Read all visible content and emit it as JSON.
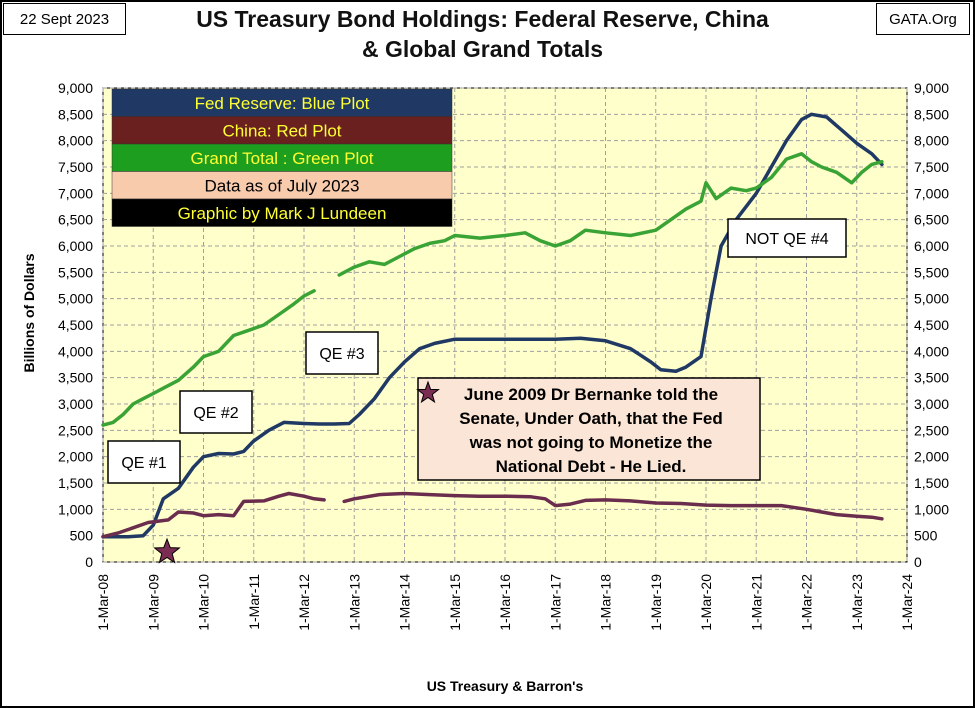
{
  "header": {
    "date": "22 Sept 2023",
    "source_label": "GATA.Org",
    "title_line1": "US Treasury Bond Holdings: Federal Reserve, China",
    "title_line2": "& Global Grand Totals"
  },
  "legend": [
    {
      "text": "Fed Reserve: Blue Plot",
      "bg": "#1f3864",
      "fg": "#ffff33"
    },
    {
      "text": "China: Red Plot",
      "bg": "#6b2020",
      "fg": "#ffff33"
    },
    {
      "text": "Grand Total : Green Plot",
      "bg": "#1e9e1e",
      "fg": "#ffff33"
    },
    {
      "text": "Data as of July 2023",
      "bg": "#f8cbad",
      "fg": "#000000"
    },
    {
      "text": "Graphic by Mark J Lundeen",
      "bg": "#000000",
      "fg": "#ffff33"
    }
  ],
  "colors": {
    "plot_background": "#ffffcc",
    "fed": "#1f3864",
    "china": "#6b2d4e",
    "total": "#3aa335",
    "note_background": "#fbe5d6"
  },
  "annotations": {
    "qe1": "QE #1",
    "qe2": "QE #2",
    "qe3": "QE #3",
    "notqe4": "NOT QE #4",
    "note_lines": [
      "June 2009 Dr Bernanke told the",
      "Senate, Under Oath, that the Fed",
      "was not going to Monetize the",
      "National Debt - He Lied."
    ]
  },
  "chart_data": {
    "type": "line",
    "title": "US Treasury Bond Holdings: Federal Reserve, China & Global Grand Totals",
    "xlabel": "US Treasury  & Barron's",
    "ylabel": "Billions of Dollars",
    "ylim": [
      0,
      9000
    ],
    "y_ticks": [
      "0",
      "500",
      "1,000",
      "1,500",
      "2,000",
      "2,500",
      "3,000",
      "3,500",
      "4,000",
      "4,500",
      "5,000",
      "5,500",
      "6,000",
      "6,500",
      "7,000",
      "7,500",
      "8,000",
      "8,500",
      "9,000"
    ],
    "x_ticks": [
      "1-Mar-08",
      "1-Mar-09",
      "1-Mar-10",
      "1-Mar-11",
      "1-Mar-12",
      "1-Mar-13",
      "1-Mar-14",
      "1-Mar-15",
      "1-Mar-16",
      "1-Mar-17",
      "1-Mar-18",
      "1-Mar-19",
      "1-Mar-20",
      "1-Mar-21",
      "1-Mar-22",
      "1-Mar-23",
      "1-Mar-24"
    ],
    "xlim": [
      2008.0,
      2024.0
    ],
    "grid": true,
    "legend_position": "top-left",
    "series": [
      {
        "key": "fed",
        "points": [
          [
            2008.0,
            480
          ],
          [
            2008.5,
            480
          ],
          [
            2008.8,
            500
          ],
          [
            2009.0,
            700
          ],
          [
            2009.2,
            1200
          ],
          [
            2009.5,
            1400
          ],
          [
            2009.8,
            1800
          ],
          [
            2010.0,
            2000
          ],
          [
            2010.3,
            2060
          ],
          [
            2010.6,
            2050
          ],
          [
            2010.8,
            2100
          ],
          [
            2011.0,
            2300
          ],
          [
            2011.3,
            2500
          ],
          [
            2011.6,
            2650
          ],
          [
            2012.0,
            2630
          ],
          [
            2012.3,
            2620
          ],
          [
            2012.6,
            2620
          ],
          [
            2012.9,
            2630
          ],
          [
            2013.1,
            2800
          ],
          [
            2013.4,
            3100
          ],
          [
            2013.7,
            3500
          ],
          [
            2014.0,
            3800
          ],
          [
            2014.3,
            4050
          ],
          [
            2014.6,
            4150
          ],
          [
            2015.0,
            4230
          ],
          [
            2015.5,
            4230
          ],
          [
            2016.0,
            4230
          ],
          [
            2016.5,
            4230
          ],
          [
            2017.0,
            4230
          ],
          [
            2017.5,
            4250
          ],
          [
            2018.0,
            4200
          ],
          [
            2018.5,
            4050
          ],
          [
            2018.9,
            3800
          ],
          [
            2019.1,
            3650
          ],
          [
            2019.4,
            3620
          ],
          [
            2019.6,
            3700
          ],
          [
            2019.9,
            3900
          ],
          [
            2020.1,
            5000
          ],
          [
            2020.3,
            6000
          ],
          [
            2020.6,
            6500
          ],
          [
            2021.0,
            7000
          ],
          [
            2021.3,
            7500
          ],
          [
            2021.6,
            8000
          ],
          [
            2021.9,
            8400
          ],
          [
            2022.1,
            8500
          ],
          [
            2022.4,
            8450
          ],
          [
            2022.7,
            8200
          ],
          [
            2023.0,
            7950
          ],
          [
            2023.3,
            7750
          ],
          [
            2023.5,
            7550
          ]
        ]
      },
      {
        "key": "china",
        "points": [
          [
            2008.0,
            480
          ],
          [
            2008.3,
            550
          ],
          [
            2008.6,
            650
          ],
          [
            2008.9,
            750
          ],
          [
            2009.3,
            800
          ],
          [
            2009.5,
            950
          ],
          [
            2009.8,
            930
          ],
          [
            2010.0,
            880
          ],
          [
            2010.3,
            900
          ],
          [
            2010.6,
            880
          ],
          [
            2010.8,
            1150
          ],
          [
            2011.2,
            1160
          ],
          [
            2011.5,
            1250
          ],
          [
            2011.7,
            1300
          ],
          [
            2012.0,
            1250
          ],
          [
            2012.2,
            1200
          ],
          [
            2012.4,
            1180
          ],
          [
            2012.7,
            null
          ],
          [
            2012.8,
            1150
          ],
          [
            2013.0,
            1200
          ],
          [
            2013.5,
            1280
          ],
          [
            2014.0,
            1300
          ],
          [
            2014.5,
            1280
          ],
          [
            2015.0,
            1260
          ],
          [
            2015.5,
            1250
          ],
          [
            2016.0,
            1250
          ],
          [
            2016.5,
            1240
          ],
          [
            2016.8,
            1200
          ],
          [
            2017.0,
            1070
          ],
          [
            2017.3,
            1100
          ],
          [
            2017.6,
            1170
          ],
          [
            2018.0,
            1180
          ],
          [
            2018.5,
            1160
          ],
          [
            2019.0,
            1120
          ],
          [
            2019.5,
            1110
          ],
          [
            2020.0,
            1080
          ],
          [
            2020.5,
            1070
          ],
          [
            2021.0,
            1070
          ],
          [
            2021.5,
            1070
          ],
          [
            2022.0,
            1000
          ],
          [
            2022.3,
            950
          ],
          [
            2022.6,
            900
          ],
          [
            2023.0,
            870
          ],
          [
            2023.3,
            850
          ],
          [
            2023.5,
            820
          ]
        ]
      },
      {
        "key": "total",
        "points": [
          [
            2008.0,
            2600
          ],
          [
            2008.2,
            2650
          ],
          [
            2008.4,
            2800
          ],
          [
            2008.6,
            3000
          ],
          [
            2008.8,
            3100
          ],
          [
            2009.0,
            3200
          ],
          [
            2009.2,
            3300
          ],
          [
            2009.5,
            3450
          ],
          [
            2009.8,
            3700
          ],
          [
            2010.0,
            3900
          ],
          [
            2010.3,
            4000
          ],
          [
            2010.6,
            4300
          ],
          [
            2010.9,
            4400
          ],
          [
            2011.2,
            4500
          ],
          [
            2011.5,
            4700
          ],
          [
            2011.8,
            4900
          ],
          [
            2012.0,
            5050
          ],
          [
            2012.2,
            5150
          ],
          [
            2012.4,
            null
          ],
          [
            2012.7,
            5450
          ],
          [
            2013.0,
            5600
          ],
          [
            2013.3,
            5700
          ],
          [
            2013.6,
            5650
          ],
          [
            2013.9,
            5800
          ],
          [
            2014.2,
            5950
          ],
          [
            2014.5,
            6050
          ],
          [
            2014.8,
            6100
          ],
          [
            2015.0,
            6200
          ],
          [
            2015.5,
            6150
          ],
          [
            2016.0,
            6200
          ],
          [
            2016.4,
            6250
          ],
          [
            2016.7,
            6100
          ],
          [
            2017.0,
            6000
          ],
          [
            2017.3,
            6100
          ],
          [
            2017.6,
            6300
          ],
          [
            2018.0,
            6250
          ],
          [
            2018.5,
            6200
          ],
          [
            2019.0,
            6300
          ],
          [
            2019.3,
            6500
          ],
          [
            2019.6,
            6700
          ],
          [
            2019.9,
            6850
          ],
          [
            2020.0,
            7200
          ],
          [
            2020.2,
            6900
          ],
          [
            2020.5,
            7100
          ],
          [
            2020.8,
            7050
          ],
          [
            2021.0,
            7100
          ],
          [
            2021.3,
            7300
          ],
          [
            2021.6,
            7650
          ],
          [
            2021.9,
            7750
          ],
          [
            2022.1,
            7600
          ],
          [
            2022.3,
            7500
          ],
          [
            2022.6,
            7400
          ],
          [
            2022.9,
            7200
          ],
          [
            2023.1,
            7400
          ],
          [
            2023.3,
            7550
          ],
          [
            2023.5,
            7600
          ]
        ]
      }
    ]
  }
}
